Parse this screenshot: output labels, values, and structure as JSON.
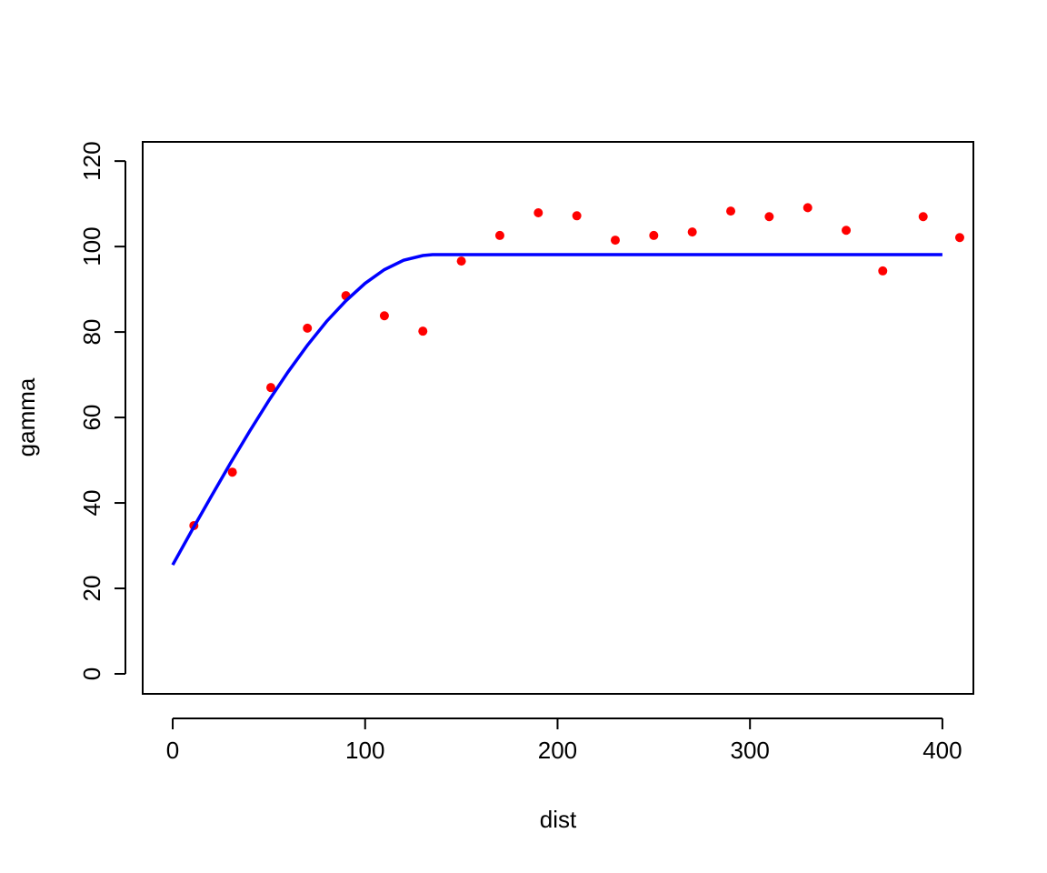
{
  "chart_data": {
    "type": "scatter",
    "x_label": "dist",
    "y_label": "gamma",
    "xlim": [
      -15.6,
      416.1
    ],
    "ylim": [
      -4.68,
      124.5
    ],
    "xticks": [
      0,
      100,
      200,
      300,
      400
    ],
    "yticks": [
      0,
      20,
      40,
      60,
      80,
      100,
      120
    ],
    "series": [
      {
        "type": "scatter",
        "color": "#ff0000",
        "x": [
          11,
          31,
          51,
          70,
          90,
          110,
          130,
          150,
          170,
          190,
          210,
          230,
          250,
          270,
          290,
          310,
          330,
          350,
          369,
          390,
          409
        ],
        "values": [
          34.7,
          47.2,
          67.0,
          80.9,
          88.5,
          83.8,
          80.2,
          96.6,
          102.6,
          107.9,
          107.2,
          101.5,
          102.6,
          103.4,
          108.3,
          107.0,
          109.1,
          103.8,
          94.3,
          107.0,
          102.1
        ]
      },
      {
        "type": "line",
        "color": "#0000ff",
        "x": [
          0,
          10,
          20,
          30,
          40,
          50,
          60,
          70,
          80,
          90,
          100,
          110,
          120,
          130,
          135,
          400
        ],
        "values": [
          25.5,
          33.6,
          41.5,
          49.3,
          56.8,
          64.0,
          70.7,
          76.9,
          82.5,
          87.3,
          91.4,
          94.6,
          96.8,
          97.9,
          98.1,
          98.1
        ]
      }
    ]
  }
}
